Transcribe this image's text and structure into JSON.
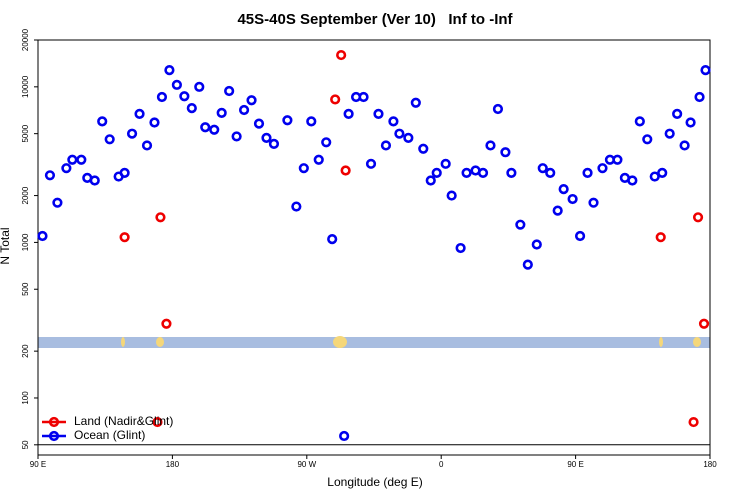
{
  "chart_data": {
    "type": "scatter",
    "title": "45S-40S September (Ver 10)   Inf to -Inf",
    "x_label": "Longitude (deg E)",
    "y_label": "N Total",
    "log_y": true,
    "xlim": [
      90,
      540
    ],
    "ylim": [
      43,
      20000
    ],
    "xticks": [
      {
        "value": 90,
        "label": "90 E"
      },
      180,
      {
        "value": 270,
        "label": "90 W"
      },
      {
        "value": 360,
        "label": "0"
      },
      {
        "value": 450,
        "label": "90 E"
      },
      {
        "value": 540,
        "label": "180"
      }
    ],
    "yticks": [
      50,
      100,
      200,
      500,
      1000,
      2000,
      5000,
      10000,
      20000
    ],
    "legend": "bottom-left",
    "series": [
      {
        "name": "Land (Nadir&Glint)",
        "color": "#ee0000",
        "x": [
          148,
          172,
          176,
          170,
          289,
          293,
          296,
          507,
          532,
          536,
          529
        ],
        "values": [
          1080,
          1450,
          300,
          70,
          8300,
          16000,
          2900,
          1080,
          1450,
          300,
          70
        ]
      },
      {
        "name": "Ocean (Glint)",
        "color": "#0000ee",
        "x": [
          93,
          98,
          103,
          109,
          113,
          119,
          123,
          128,
          133,
          138,
          144,
          148,
          153,
          158,
          163,
          168,
          173,
          178,
          183,
          188,
          193,
          198,
          202,
          208,
          213,
          218,
          223,
          228,
          233,
          238,
          243,
          248,
          257,
          263,
          268,
          273,
          278,
          283,
          287,
          295,
          298,
          303,
          308,
          313,
          318,
          323,
          328,
          332,
          338,
          343,
          348,
          353,
          357,
          363,
          367,
          373,
          377,
          383,
          388,
          393,
          398,
          403,
          407,
          413,
          418,
          424,
          428,
          433,
          438,
          442,
          448,
          453,
          458,
          462,
          468,
          473,
          478,
          483,
          488,
          493,
          498,
          503,
          508,
          513,
          518,
          523,
          527,
          533,
          537
        ],
        "values": [
          1100,
          2700,
          1800,
          3000,
          3400,
          3400,
          2600,
          2500,
          6000,
          4600,
          2650,
          2800,
          5000,
          6700,
          4200,
          5900,
          8600,
          12800,
          10300,
          8700,
          7300,
          10000,
          5500,
          5300,
          6800,
          9400,
          4800,
          7100,
          8200,
          5800,
          4700,
          4300,
          6100,
          1700,
          3000,
          6000,
          3400,
          4400,
          1050,
          57,
          6700,
          8600,
          8600,
          3200,
          6700,
          4200,
          6000,
          5000,
          4700,
          7900,
          4000,
          2500,
          2800,
          3200,
          2000,
          920,
          2800,
          2900,
          2800,
          4200,
          7200,
          3800,
          2800,
          1300,
          720,
          970,
          3000,
          2800,
          1600,
          2200,
          1900,
          1100,
          2800,
          1800,
          3000,
          3400,
          3400,
          2600,
          2500,
          6000,
          4600,
          2650,
          2800,
          5000,
          6700,
          4200,
          5900,
          8600,
          12800
        ]
      }
    ]
  }
}
